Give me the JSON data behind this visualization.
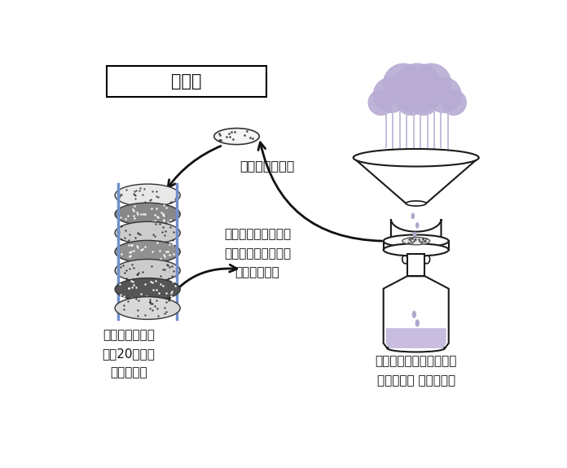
{
  "title": "本研究",
  "text_filter": "薄膜フィルター",
  "text_analysis": "抽出・分析法の考案\nにより過去の沈着量\nデータを復元",
  "text_filter_stack": "保存されていた\n過去20年間の\nフィルター",
  "text_sampler": "酸性雨研究で用いられた\nバルク沈着 サンプラー",
  "bg_color": "#ffffff",
  "cloud_color": "#b8acd4",
  "rain_color": "#c0b8d8",
  "line_color": "#1a1a1a",
  "liquid_color": "#c8bce0",
  "drop_color": "#b0a8cc",
  "filter_disc_colors": [
    "#e8e8e8",
    "#888888",
    "#cccccc",
    "#909090",
    "#cccccc",
    "#555555",
    "#d8d8d8"
  ],
  "blue_line_color": "#7090cc",
  "arrow_color": "#111111",
  "text_color": "#111111",
  "font_size_title": 15,
  "font_size_label": 11
}
